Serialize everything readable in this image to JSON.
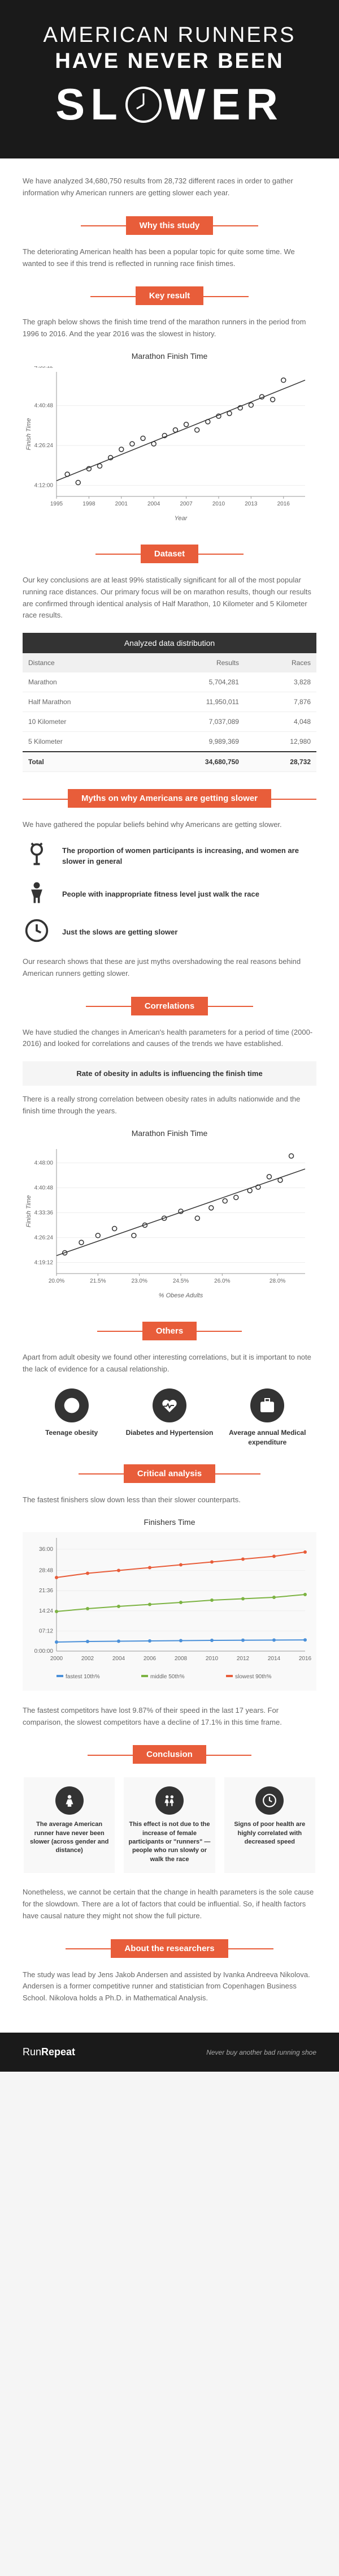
{
  "hero": {
    "line1": "AMERICAN RUNNERS",
    "line2": "HAVE NEVER BEEN",
    "slower_left": "SL",
    "slower_right": "WER"
  },
  "intro": {
    "text": "We have analyzed 34,680,750 results from 28,732 different races in order to gather information why American runners are getting slower each year."
  },
  "sections": {
    "why": "Why this study",
    "key": "Key result",
    "dataset": "Dataset",
    "myths": "Myths on why Americans are getting slower",
    "correlations": "Correlations",
    "others": "Others",
    "critical": "Critical analysis",
    "conclusion": "Conclusion",
    "about": "About the researchers"
  },
  "why_para": "The deteriorating American health has been a popular topic for quite some time. We wanted to see if this trend is reflected in running race finish times.",
  "key_para": "The graph below shows the finish time trend of the marathon runners in the period from 1996 to 2016. And the year 2016 was the slowest in history.",
  "chart1": {
    "title": "Marathon Finish Time",
    "type": "scatter",
    "xlabel": "Year",
    "ylabel": "Finish Time",
    "xlim": [
      1995,
      2018
    ],
    "xticks": [
      1995,
      1998,
      2001,
      2004,
      2007,
      2010,
      2013,
      2016
    ],
    "ylim": [
      4.08,
      4.53
    ],
    "yticks": [
      "4:12:00",
      "4:26:24",
      "4:40:48",
      "4:55:12"
    ],
    "yt_vals": [
      4.12,
      4.264,
      4.408,
      4.552
    ],
    "points": [
      {
        "x": 1996,
        "y": 4.16
      },
      {
        "x": 1997,
        "y": 4.13
      },
      {
        "x": 1998,
        "y": 4.18
      },
      {
        "x": 1999,
        "y": 4.19
      },
      {
        "x": 2000,
        "y": 4.22
      },
      {
        "x": 2001,
        "y": 4.25
      },
      {
        "x": 2002,
        "y": 4.27
      },
      {
        "x": 2003,
        "y": 4.29
      },
      {
        "x": 2004,
        "y": 4.27
      },
      {
        "x": 2005,
        "y": 4.3
      },
      {
        "x": 2006,
        "y": 4.32
      },
      {
        "x": 2007,
        "y": 4.34
      },
      {
        "x": 2008,
        "y": 4.32
      },
      {
        "x": 2009,
        "y": 4.35
      },
      {
        "x": 2010,
        "y": 4.37
      },
      {
        "x": 2011,
        "y": 4.38
      },
      {
        "x": 2012,
        "y": 4.4
      },
      {
        "x": 2013,
        "y": 4.41
      },
      {
        "x": 2014,
        "y": 4.44
      },
      {
        "x": 2015,
        "y": 4.43
      },
      {
        "x": 2016,
        "y": 4.5
      }
    ],
    "dot_color": "#333333",
    "background": "#ffffff"
  },
  "dataset_para": "Our key conclusions are at least 99% statistically significant for all of the most popular running race distances. Our primary focus will be on marathon results, though our results are confirmed through identical analysis of Half Marathon, 10 Kilometer and 5 Kilometer race results.",
  "table": {
    "title": "Analyzed data distribution",
    "columns": [
      "Distance",
      "Results",
      "Races"
    ],
    "rows": [
      [
        "Marathon",
        "5,704,281",
        "3,828"
      ],
      [
        "Half Marathon",
        "11,950,011",
        "7,876"
      ],
      [
        "10 Kilometer",
        "7,037,089",
        "4,048"
      ],
      [
        "5 Kilometer",
        "9,989,369",
        "12,980"
      ]
    ],
    "total": [
      "Total",
      "34,680,750",
      "28,732"
    ]
  },
  "myths_intro": "We have gathered the popular beliefs behind why Americans are getting slower.",
  "myths": [
    "The proportion of women participants is increasing, and women are slower in general",
    "People with inappropriate fitness level just walk the race",
    "Just the slows are getting slower"
  ],
  "myths_conclusion": "Our research shows that these are just myths overshadowing the real reasons behind American runners getting slower.",
  "correlations_para": "We have studied the changes in American's health parameters for a period of time (2000-2016) and looked for correlations and causes of the trends we have established.",
  "correlation_highlight": "Rate of obesity in adults is influencing the finish time",
  "correlation_para2": "There is a really strong correlation between obesity rates in adults nationwide and the finish time through the years.",
  "chart2": {
    "title": "Marathon Finish Time",
    "type": "scatter",
    "xlabel": "% Obese Adults",
    "ylabel": "Finish Time",
    "xlim": [
      20,
      29
    ],
    "xticks": [
      "20.0%",
      "21.5%",
      "23.0%",
      "24.5%",
      "26.0%",
      "28.0%"
    ],
    "xt_vals": [
      20,
      21.5,
      23,
      24.5,
      26,
      28
    ],
    "ylim": [
      4.16,
      4.52
    ],
    "yticks": [
      "4:19:12",
      "4:26:24",
      "4:33:36",
      "4:40:48",
      "4:48:00"
    ],
    "yt_vals": [
      4.192,
      4.264,
      4.336,
      4.408,
      4.48
    ],
    "points": [
      {
        "x": 20.3,
        "y": 4.22
      },
      {
        "x": 20.9,
        "y": 4.25
      },
      {
        "x": 21.5,
        "y": 4.27
      },
      {
        "x": 22.1,
        "y": 4.29
      },
      {
        "x": 22.8,
        "y": 4.27
      },
      {
        "x": 23.2,
        "y": 4.3
      },
      {
        "x": 23.9,
        "y": 4.32
      },
      {
        "x": 24.5,
        "y": 4.34
      },
      {
        "x": 25.1,
        "y": 4.32
      },
      {
        "x": 25.6,
        "y": 4.35
      },
      {
        "x": 26.1,
        "y": 4.37
      },
      {
        "x": 26.5,
        "y": 4.38
      },
      {
        "x": 27.0,
        "y": 4.4
      },
      {
        "x": 27.3,
        "y": 4.41
      },
      {
        "x": 27.7,
        "y": 4.44
      },
      {
        "x": 28.1,
        "y": 4.43
      },
      {
        "x": 28.5,
        "y": 4.5
      }
    ],
    "dot_color": "#333333",
    "background": "#ffffff"
  },
  "others_para": "Apart from adult obesity we found other interesting correlations, but it is important to note the lack of evidence for a causal relationship.",
  "others_items": [
    {
      "label": "Teenage obesity",
      "icon": "bmi"
    },
    {
      "label": "Diabetes and Hypertension",
      "icon": "heart"
    },
    {
      "label": "Average annual Medical expenditure",
      "icon": "medkit"
    }
  ],
  "critical_para": "The fastest finishers slow down less than their slower counterparts.",
  "chart3": {
    "title": "Finishers Time",
    "type": "line",
    "xlabel": "Year",
    "ylabel": "",
    "xlim": [
      2000,
      2016
    ],
    "xticks": [
      2000,
      2002,
      2004,
      2006,
      2008,
      2010,
      2012,
      2014,
      2016
    ],
    "ylim": [
      0,
      40
    ],
    "yticks": [
      "0:00:00",
      "07:12",
      "14:24",
      "21:36",
      "28:48",
      "36:00"
    ],
    "yt_vals": [
      0,
      7.12,
      14.24,
      21.36,
      28.48,
      36
    ],
    "series": [
      {
        "name": "fastest 10th%",
        "color": "#4a90d9",
        "data": [
          {
            "x": 2000,
            "y": 3.2
          },
          {
            "x": 2002,
            "y": 3.4
          },
          {
            "x": 2004,
            "y": 3.5
          },
          {
            "x": 2006,
            "y": 3.6
          },
          {
            "x": 2008,
            "y": 3.7
          },
          {
            "x": 2010,
            "y": 3.8
          },
          {
            "x": 2012,
            "y": 3.85
          },
          {
            "x": 2014,
            "y": 3.9
          },
          {
            "x": 2016,
            "y": 3.95
          }
        ]
      },
      {
        "name": "middle 50th%",
        "color": "#7cb342",
        "data": [
          {
            "x": 2000,
            "y": 14
          },
          {
            "x": 2002,
            "y": 15
          },
          {
            "x": 2004,
            "y": 15.8
          },
          {
            "x": 2006,
            "y": 16.5
          },
          {
            "x": 2008,
            "y": 17.2
          },
          {
            "x": 2010,
            "y": 18
          },
          {
            "x": 2012,
            "y": 18.5
          },
          {
            "x": 2014,
            "y": 19
          },
          {
            "x": 2016,
            "y": 20
          }
        ]
      },
      {
        "name": "slowest 90th%",
        "color": "#e85d3a",
        "data": [
          {
            "x": 2000,
            "y": 26
          },
          {
            "x": 2002,
            "y": 27.5
          },
          {
            "x": 2004,
            "y": 28.5
          },
          {
            "x": 2006,
            "y": 29.5
          },
          {
            "x": 2008,
            "y": 30.5
          },
          {
            "x": 2010,
            "y": 31.5
          },
          {
            "x": 2012,
            "y": 32.5
          },
          {
            "x": 2014,
            "y": 33.5
          },
          {
            "x": 2016,
            "y": 35
          }
        ]
      }
    ],
    "legend_items": [
      "fastest 10th%",
      "middle 50th%",
      "slowest 90th%"
    ],
    "background": "#f9f9f9"
  },
  "critical_para2": "The fastest competitors have lost 9.87% of their speed in the last 17 years. For comparison, the slowest competitors have a decline of 17.1% in this time frame.",
  "conclusions": [
    "The average American runner have never been slower (across gender and distance)",
    "This effect is not due to the increase of female participants or \"runners\" — people who run slowly or walk the race",
    "Signs of poor health are highly correlated with decreased speed"
  ],
  "conclusion_para": "Nonetheless, we cannot be certain that the change in health parameters is the sole cause for the slowdown. There are a lot of factors that could be influential. So, if health factors have causal nature they might not show the full picture.",
  "about_para": "The study was lead by Jens Jakob Andersen and assisted by Ivanka Andreeva Nikolova. Andersen is a former competitive runner and statistician from Copenhagen Business School. Nikolova holds a Ph.D. in Mathematical Analysis.",
  "footer": {
    "logo1": "Run",
    "logo2": "Repeat",
    "tagline": "Never buy another bad running shoe"
  }
}
